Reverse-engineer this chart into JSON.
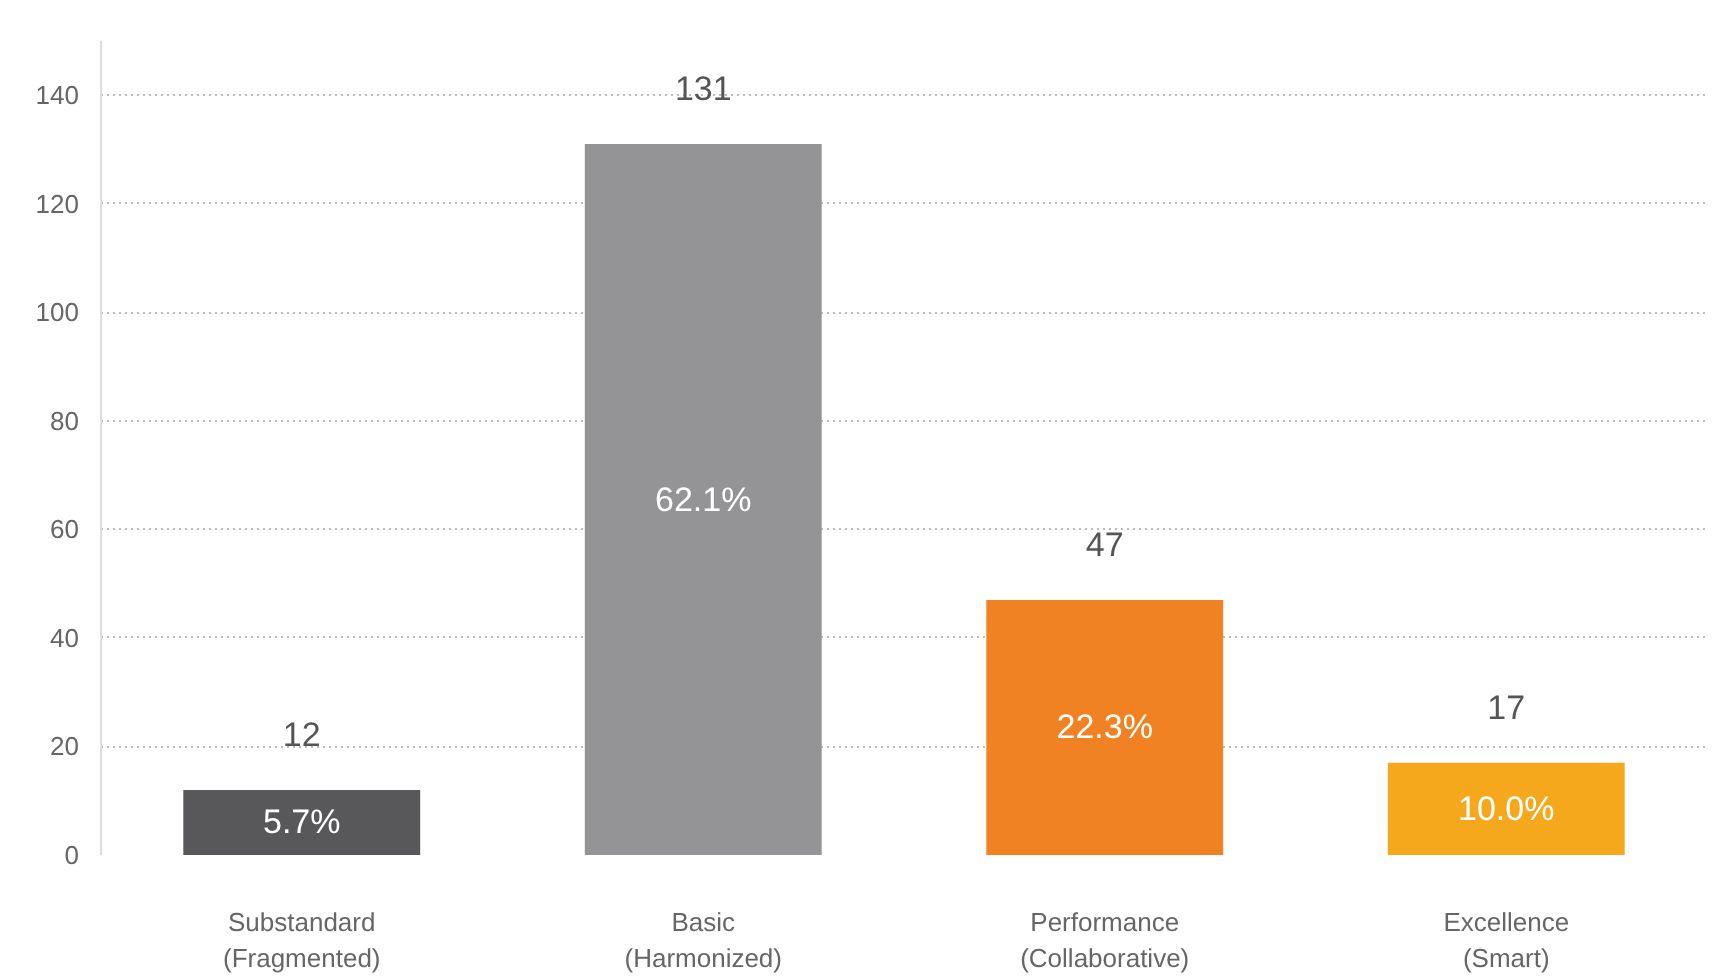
{
  "chart_data": {
    "type": "bar",
    "categories": [
      "Substandard\n(Fragmented)",
      "Basic\n(Harmonized)",
      "Performance\n(Collaborative)",
      "Excellence\n(Smart)"
    ],
    "values": [
      12,
      131,
      47,
      17
    ],
    "colors": [
      "#58585a",
      "#949497",
      "#f08223",
      "#f5a81c"
    ],
    "data_labels": true,
    "annotations": [
      "5.7%",
      "62.1%",
      "22.3%",
      "10.0%"
    ],
    "ylim": [
      0,
      150
    ],
    "yticks": [
      0,
      20,
      40,
      60,
      80,
      100,
      120,
      140
    ],
    "grid": "y"
  }
}
